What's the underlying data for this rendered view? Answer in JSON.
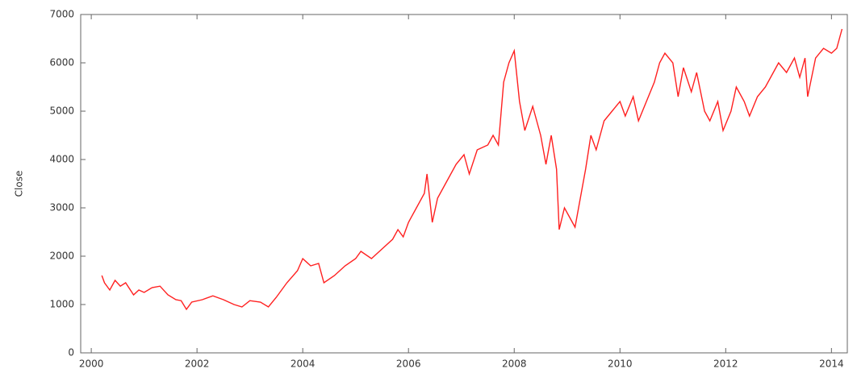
{
  "chart_data": {
    "type": "line",
    "y_label": "Close",
    "series": [
      {
        "name": "Close",
        "color": "#ff2020",
        "x": [
          2000.2,
          2000.25,
          2000.35,
          2000.45,
          2000.55,
          2000.65,
          2000.8,
          2000.9,
          2001.0,
          2001.15,
          2001.3,
          2001.45,
          2001.6,
          2001.7,
          2001.8,
          2001.9,
          2002.1,
          2002.3,
          2002.5,
          2002.7,
          2002.85,
          2003.0,
          2003.2,
          2003.35,
          2003.5,
          2003.7,
          2003.9,
          2004.0,
          2004.15,
          2004.3,
          2004.4,
          2004.6,
          2004.8,
          2005.0,
          2005.1,
          2005.3,
          2005.5,
          2005.7,
          2005.8,
          2005.9,
          2006.0,
          2006.15,
          2006.3,
          2006.35,
          2006.45,
          2006.55,
          2006.7,
          2006.9,
          2007.05,
          2007.15,
          2007.3,
          2007.5,
          2007.6,
          2007.7,
          2007.8,
          2007.9,
          2008.0,
          2008.1,
          2008.2,
          2008.35,
          2008.5,
          2008.6,
          2008.7,
          2008.8,
          2008.85,
          2008.95,
          2009.05,
          2009.15,
          2009.25,
          2009.35,
          2009.45,
          2009.55,
          2009.7,
          2009.85,
          2010.0,
          2010.1,
          2010.25,
          2010.35,
          2010.5,
          2010.65,
          2010.75,
          2010.85,
          2011.0,
          2011.1,
          2011.2,
          2011.35,
          2011.45,
          2011.6,
          2011.7,
          2011.85,
          2011.95,
          2012.1,
          2012.2,
          2012.35,
          2012.45,
          2012.6,
          2012.75,
          2012.9,
          2013.0,
          2013.15,
          2013.3,
          2013.4,
          2013.5,
          2013.55,
          2013.7,
          2013.85,
          2014.0,
          2014.1,
          2014.2
        ],
        "values": [
          1600,
          1450,
          1300,
          1500,
          1380,
          1450,
          1200,
          1300,
          1250,
          1350,
          1380,
          1200,
          1100,
          1080,
          900,
          1050,
          1100,
          1180,
          1100,
          1000,
          950,
          1080,
          1050,
          950,
          1150,
          1450,
          1700,
          1950,
          1800,
          1850,
          1450,
          1600,
          1800,
          1950,
          2100,
          1950,
          2150,
          2350,
          2550,
          2400,
          2700,
          3000,
          3300,
          3700,
          2700,
          3200,
          3500,
          3900,
          4100,
          3700,
          4200,
          4300,
          4500,
          4300,
          5600,
          6000,
          6250,
          5200,
          4600,
          5100,
          4500,
          3900,
          4500,
          3800,
          2550,
          3000,
          2800,
          2600,
          3200,
          3800,
          4500,
          4200,
          4800,
          5000,
          5200,
          4900,
          5300,
          4800,
          5200,
          5600,
          6000,
          6200,
          6000,
          5300,
          5900,
          5400,
          5800,
          5000,
          4800,
          5200,
          4600,
          5000,
          5500,
          5200,
          4900,
          5300,
          5500,
          5800,
          6000,
          5800,
          6100,
          5700,
          6100,
          5300,
          6100,
          6300,
          6200,
          6300,
          6700
        ]
      }
    ],
    "xlim": [
      1999.8,
      2014.3
    ],
    "xticks": [
      2000,
      2002,
      2004,
      2006,
      2008,
      2010,
      2012,
      2014
    ],
    "ylim": [
      0,
      7000
    ],
    "yticks": [
      0,
      1000,
      2000,
      3000,
      4000,
      5000,
      6000,
      7000
    ]
  }
}
